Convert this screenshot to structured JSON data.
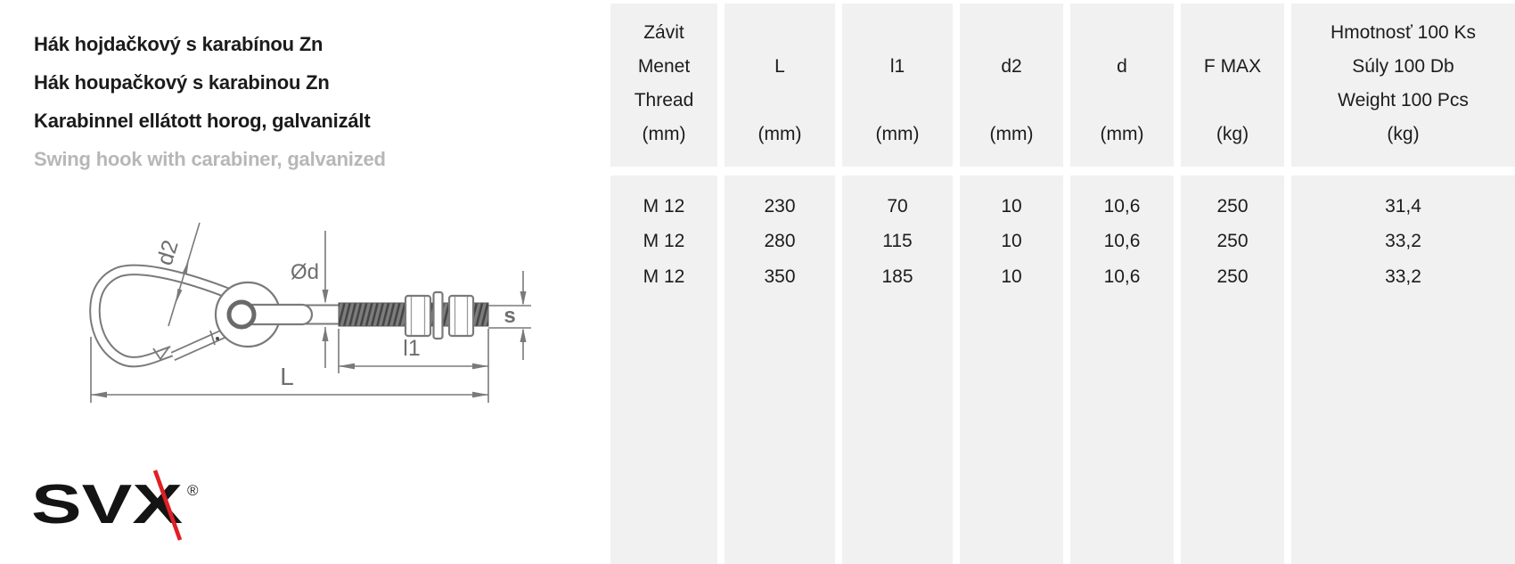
{
  "product": {
    "titles": [
      {
        "text": "Hák hojdačkový s karabínou Zn",
        "muted": false
      },
      {
        "text": "Hák houpačkový s karabinou Zn",
        "muted": false
      },
      {
        "text": "Karabinnel ellátott horog, galvanizált",
        "muted": false
      },
      {
        "text": "Swing hook with carabiner, galvanized",
        "muted": true
      }
    ]
  },
  "drawing": {
    "labels": {
      "d2": "d2",
      "d": "Ød",
      "s": "s",
      "l1": "l1",
      "L": "L"
    }
  },
  "logo": {
    "text": "SVX",
    "reg": "®",
    "slash_color": "#e01f26"
  },
  "colors": {
    "cell_bg": "#f1f1f1",
    "line_gray": "#7a7a7a",
    "title_muted": "#b7b7b7",
    "accent_red": "#e01f26",
    "text": "#1c1c1c"
  },
  "table": {
    "columns": [
      {
        "lines": [
          "Závit",
          "Menet",
          "Thread",
          "(mm)"
        ]
      },
      {
        "lines": [
          "",
          "L",
          "",
          "(mm)"
        ]
      },
      {
        "lines": [
          "",
          "l1",
          "",
          "(mm)"
        ]
      },
      {
        "lines": [
          "",
          "d2",
          "",
          "(mm)"
        ]
      },
      {
        "lines": [
          "",
          "d",
          "",
          "(mm)"
        ]
      },
      {
        "lines": [
          "",
          "F MAX",
          "",
          "(kg)"
        ]
      },
      {
        "lines": [
          "Hmotnosť 100 Ks",
          "Súly 100 Db",
          "Weight 100 Pcs",
          "(kg)"
        ]
      }
    ],
    "rows": [
      [
        "M 12",
        "230",
        "70",
        "10",
        "10,6",
        "250",
        "31,4"
      ],
      [
        "M 12",
        "280",
        "115",
        "10",
        "10,6",
        "250",
        "33,2"
      ],
      [
        "M 12",
        "350",
        "185",
        "10",
        "10,6",
        "250",
        "33,2"
      ]
    ]
  }
}
